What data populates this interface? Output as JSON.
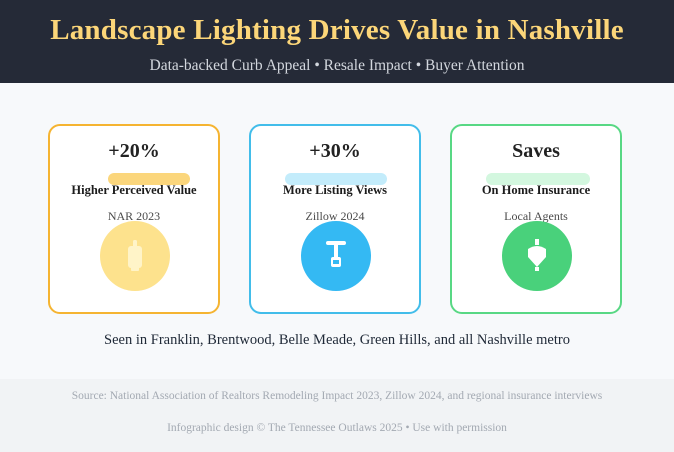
{
  "header": {
    "title": "Landscape Lighting Drives Value in Nashville",
    "subtitle": "Data-backed Curb Appeal • Resale Impact • Buyer Attention"
  },
  "cards": [
    {
      "stat": "+20%",
      "label": "Higher Perceived Value",
      "source": "NAR 2023",
      "icon": "lantern-icon",
      "accent": "#f5b431"
    },
    {
      "stat": "+30%",
      "label": "More Listing Views",
      "source": "Zillow 2024",
      "icon": "lamp-post-icon",
      "accent": "#42bdea"
    },
    {
      "stat": "Saves",
      "label": "On Home Insurance",
      "source": "Local Agents",
      "icon": "shield-light-icon",
      "accent": "#58d884"
    }
  ],
  "areas": "Seen in Franklin, Brentwood, Belle Meade, Green Hills, and all Nashville metro",
  "footer": {
    "source_note": "Source: National Association of Realtors Remodeling Impact 2023, Zillow 2024, and regional insurance interviews",
    "credit": "Infographic design © The Tennessee Outlaws 2025 • Use with permission"
  }
}
